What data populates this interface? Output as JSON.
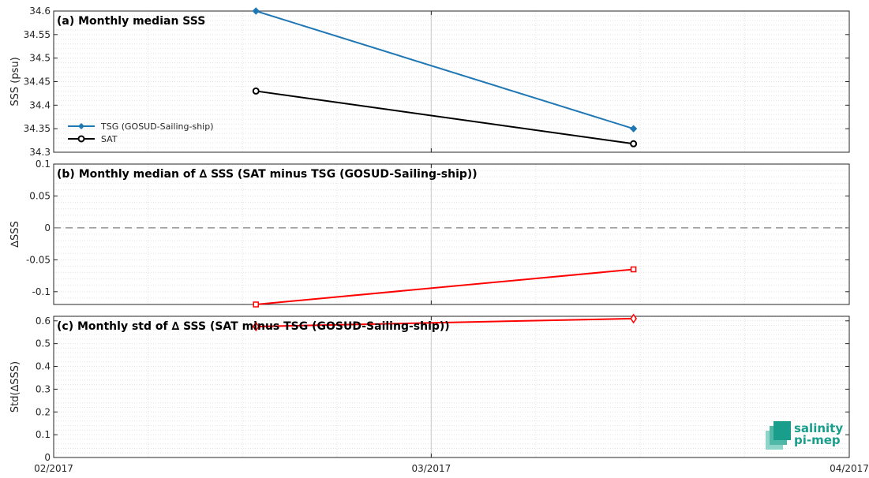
{
  "chart_data": [
    {
      "type": "line",
      "title": "(a) Monthly median SSS",
      "ylabel": "SSS (psu)",
      "ylim": [
        34.3,
        34.6
      ],
      "yticks": [
        "34.3",
        "34.35",
        "34.4",
        "34.45",
        "34.5",
        "34.55",
        "34.6"
      ],
      "x": [
        "2017-02-16",
        "2017-03-16"
      ],
      "series": [
        {
          "name": "TSG (GOSUD-Sailing-ship)",
          "color": "#1f77b4",
          "marker": "diamond-filled",
          "values": [
            34.6,
            34.35
          ]
        },
        {
          "name": "SAT",
          "color": "#000000",
          "marker": "circle-open",
          "values": [
            34.43,
            34.318
          ]
        }
      ],
      "legend": "left"
    },
    {
      "type": "line",
      "title": "(b) Monthly median of ∆ SSS (SAT minus TSG (GOSUD-Sailing-ship))",
      "ylabel": "∆SSS",
      "ylim": [
        -0.12,
        0.1
      ],
      "yticks": [
        "-0.1",
        "-0.05",
        "0",
        "0.05",
        "0.1"
      ],
      "x": [
        "2017-02-16",
        "2017-03-16"
      ],
      "series": [
        {
          "color": "#ff0000",
          "marker": "square-open",
          "values": [
            -0.12,
            -0.065
          ]
        }
      ],
      "reference_line": 0
    },
    {
      "type": "line",
      "title": "(c) Monthly std of ∆ SSS (SAT minus TSG (GOSUD-Sailing-ship))",
      "ylabel": "Std(∆SSS)",
      "ylim": [
        0,
        0.62
      ],
      "yticks": [
        "0",
        "0.1",
        "0.2",
        "0.3",
        "0.4",
        "0.5",
        "0.6"
      ],
      "x": [
        "2017-02-16",
        "2017-03-16"
      ],
      "series": [
        {
          "color": "#ff0000",
          "marker": "diamond-open",
          "values": [
            0.575,
            0.61
          ]
        }
      ]
    }
  ],
  "x_axis": {
    "range": [
      "2017-02-01",
      "2017-04-01"
    ],
    "tick_labels": [
      "02/2017",
      "03/2017",
      "04/2017"
    ],
    "minor_gridlines_per_month": 4
  },
  "logo": {
    "line1": "salinity",
    "line2": "pi-mep",
    "color": "#1a9e8c"
  }
}
